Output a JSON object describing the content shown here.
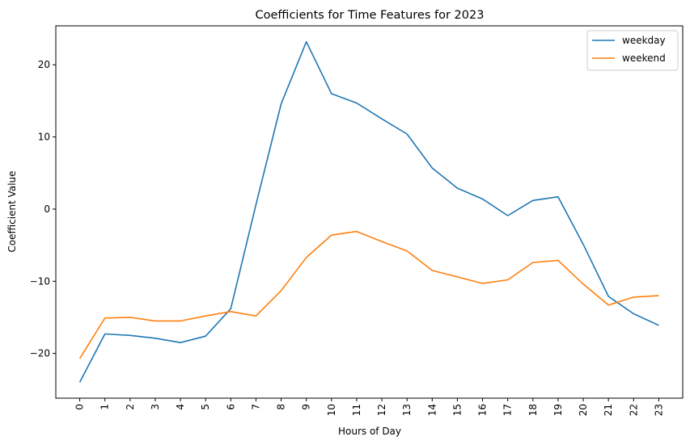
{
  "chart_data": {
    "type": "line",
    "title": "Coefficients for Time Features for 2023",
    "xlabel": "Hours of Day",
    "ylabel": "Coefficient Value",
    "x": [
      0,
      1,
      2,
      3,
      4,
      5,
      6,
      7,
      8,
      9,
      10,
      11,
      12,
      13,
      14,
      15,
      16,
      17,
      18,
      19,
      20,
      21,
      22,
      23
    ],
    "x_tick_labels": [
      "0",
      "1",
      "2",
      "3",
      "4",
      "5",
      "6",
      "7",
      "8",
      "9",
      "10",
      "11",
      "12",
      "13",
      "14",
      "15",
      "16",
      "17",
      "18",
      "19",
      "20",
      "21",
      "22",
      "23"
    ],
    "y_ticks": [
      -20,
      -10,
      0,
      10,
      20
    ],
    "y_tick_labels": [
      "−20",
      "−10",
      "0",
      "10",
      "20"
    ],
    "xlim": [
      -0.95,
      23.95
    ],
    "ylim": [
      -26.2,
      25.4
    ],
    "grid": false,
    "legend_position": "top-right",
    "series": [
      {
        "name": "weekday",
        "color": "#1f77b4",
        "values": [
          -24.0,
          -17.3,
          -17.5,
          -17.9,
          -18.5,
          -17.6,
          -13.8,
          0.6,
          14.6,
          23.2,
          16.0,
          14.7,
          12.5,
          10.4,
          5.7,
          2.9,
          1.4,
          -0.9,
          1.2,
          1.7,
          -4.9,
          -12.1,
          -14.5,
          -16.1
        ]
      },
      {
        "name": "weekend",
        "color": "#ff7f0e",
        "values": [
          -20.7,
          -15.1,
          -15.0,
          -15.5,
          -15.5,
          -14.8,
          -14.2,
          -14.8,
          -11.3,
          -6.7,
          -3.6,
          -3.1,
          -4.5,
          -5.8,
          -8.5,
          -9.4,
          -10.3,
          -9.8,
          -7.4,
          -7.1,
          -10.4,
          -13.3,
          -12.2,
          -12.0
        ]
      }
    ]
  }
}
